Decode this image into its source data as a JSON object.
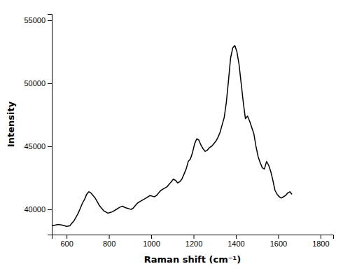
{
  "chart_data": {
    "type": "line",
    "xlabel": "Raman shift (cm⁻¹)",
    "ylabel": "Intensity",
    "color": "#000000",
    "xlim": [
      530,
      1860
    ],
    "ylim": [
      38000,
      55500
    ],
    "xticks": [
      600,
      800,
      1000,
      1200,
      1400,
      1600,
      1800
    ],
    "yticks": [
      40000,
      45000,
      50000,
      55000
    ],
    "x": [
      530,
      560,
      580,
      600,
      615,
      625,
      635,
      645,
      655,
      665,
      675,
      685,
      695,
      705,
      715,
      725,
      735,
      745,
      755,
      765,
      775,
      785,
      795,
      805,
      815,
      825,
      835,
      845,
      855,
      865,
      875,
      885,
      895,
      905,
      915,
      925,
      935,
      945,
      955,
      965,
      975,
      985,
      995,
      1005,
      1015,
      1025,
      1035,
      1045,
      1055,
      1065,
      1075,
      1085,
      1095,
      1105,
      1115,
      1125,
      1135,
      1145,
      1155,
      1165,
      1175,
      1185,
      1195,
      1205,
      1215,
      1225,
      1235,
      1245,
      1255,
      1265,
      1275,
      1285,
      1295,
      1305,
      1315,
      1325,
      1335,
      1345,
      1355,
      1365,
      1375,
      1385,
      1395,
      1405,
      1415,
      1425,
      1435,
      1445,
      1455,
      1465,
      1475,
      1485,
      1495,
      1505,
      1515,
      1525,
      1535,
      1545,
      1555,
      1565,
      1575,
      1585,
      1595,
      1605,
      1615,
      1625,
      1635,
      1645,
      1655,
      1665
    ],
    "values": [
      38700,
      38800,
      38750,
      38650,
      38700,
      38900,
      39100,
      39400,
      39700,
      40100,
      40500,
      40800,
      41200,
      41400,
      41300,
      41100,
      40900,
      40600,
      40300,
      40100,
      39900,
      39800,
      39700,
      39750,
      39800,
      39900,
      40000,
      40100,
      40200,
      40250,
      40150,
      40100,
      40050,
      40000,
      40100,
      40300,
      40500,
      40600,
      40700,
      40800,
      40900,
      41000,
      41100,
      41050,
      41000,
      41100,
      41300,
      41500,
      41600,
      41700,
      41800,
      42000,
      42200,
      42400,
      42300,
      42100,
      42200,
      42400,
      42800,
      43200,
      43800,
      44000,
      44500,
      45200,
      45600,
      45500,
      45100,
      44800,
      44600,
      44700,
      44900,
      45000,
      45200,
      45400,
      45700,
      46100,
      46700,
      47300,
      48500,
      50200,
      52000,
      52800,
      53000,
      52500,
      51500,
      50000,
      48500,
      47200,
      47400,
      47000,
      46500,
      46000,
      45000,
      44200,
      43700,
      43300,
      43200,
      43800,
      43500,
      43000,
      42300,
      41500,
      41200,
      41000,
      40900,
      41000,
      41100,
      41300,
      41400,
      41200
    ]
  }
}
